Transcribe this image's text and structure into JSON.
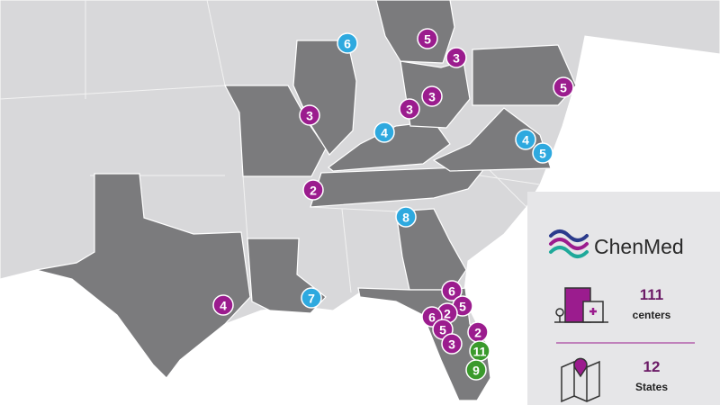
{
  "legend": {
    "brand": "ChenMed",
    "centers": {
      "value": 111,
      "label": "centers"
    },
    "states": {
      "value": 12,
      "label": "States"
    }
  },
  "markers": [
    {
      "value": 6,
      "color": "#2ea9df"
    },
    {
      "value": 5,
      "color": "#9b1c8e"
    },
    {
      "value": 3,
      "color": "#9b1c8e"
    },
    {
      "value": 5,
      "color": "#9b1c8e"
    },
    {
      "value": 3,
      "color": "#9b1c8e"
    },
    {
      "value": 3,
      "color": "#9b1c8e"
    },
    {
      "value": 3,
      "color": "#9b1c8e"
    },
    {
      "value": 4,
      "color": "#2ea9df"
    },
    {
      "value": 4,
      "color": "#2ea9df"
    },
    {
      "value": 5,
      "color": "#2ea9df"
    },
    {
      "value": 2,
      "color": "#9b1c8e"
    },
    {
      "value": 8,
      "color": "#2ea9df"
    },
    {
      "value": 4,
      "color": "#9b1c8e"
    },
    {
      "value": 7,
      "color": "#2ea9df"
    },
    {
      "value": 6,
      "color": "#9b1c8e"
    },
    {
      "value": 5,
      "color": "#9b1c8e"
    },
    {
      "value": 2,
      "color": "#9b1c8e"
    },
    {
      "value": 6,
      "color": "#9b1c8e"
    },
    {
      "value": 5,
      "color": "#9b1c8e"
    },
    {
      "value": 2,
      "color": "#9b1c8e"
    },
    {
      "value": 3,
      "color": "#9b1c8e"
    },
    {
      "value": 11,
      "color": "#3a9a2c"
    },
    {
      "value": 9,
      "color": "#3a9a2c"
    }
  ]
}
